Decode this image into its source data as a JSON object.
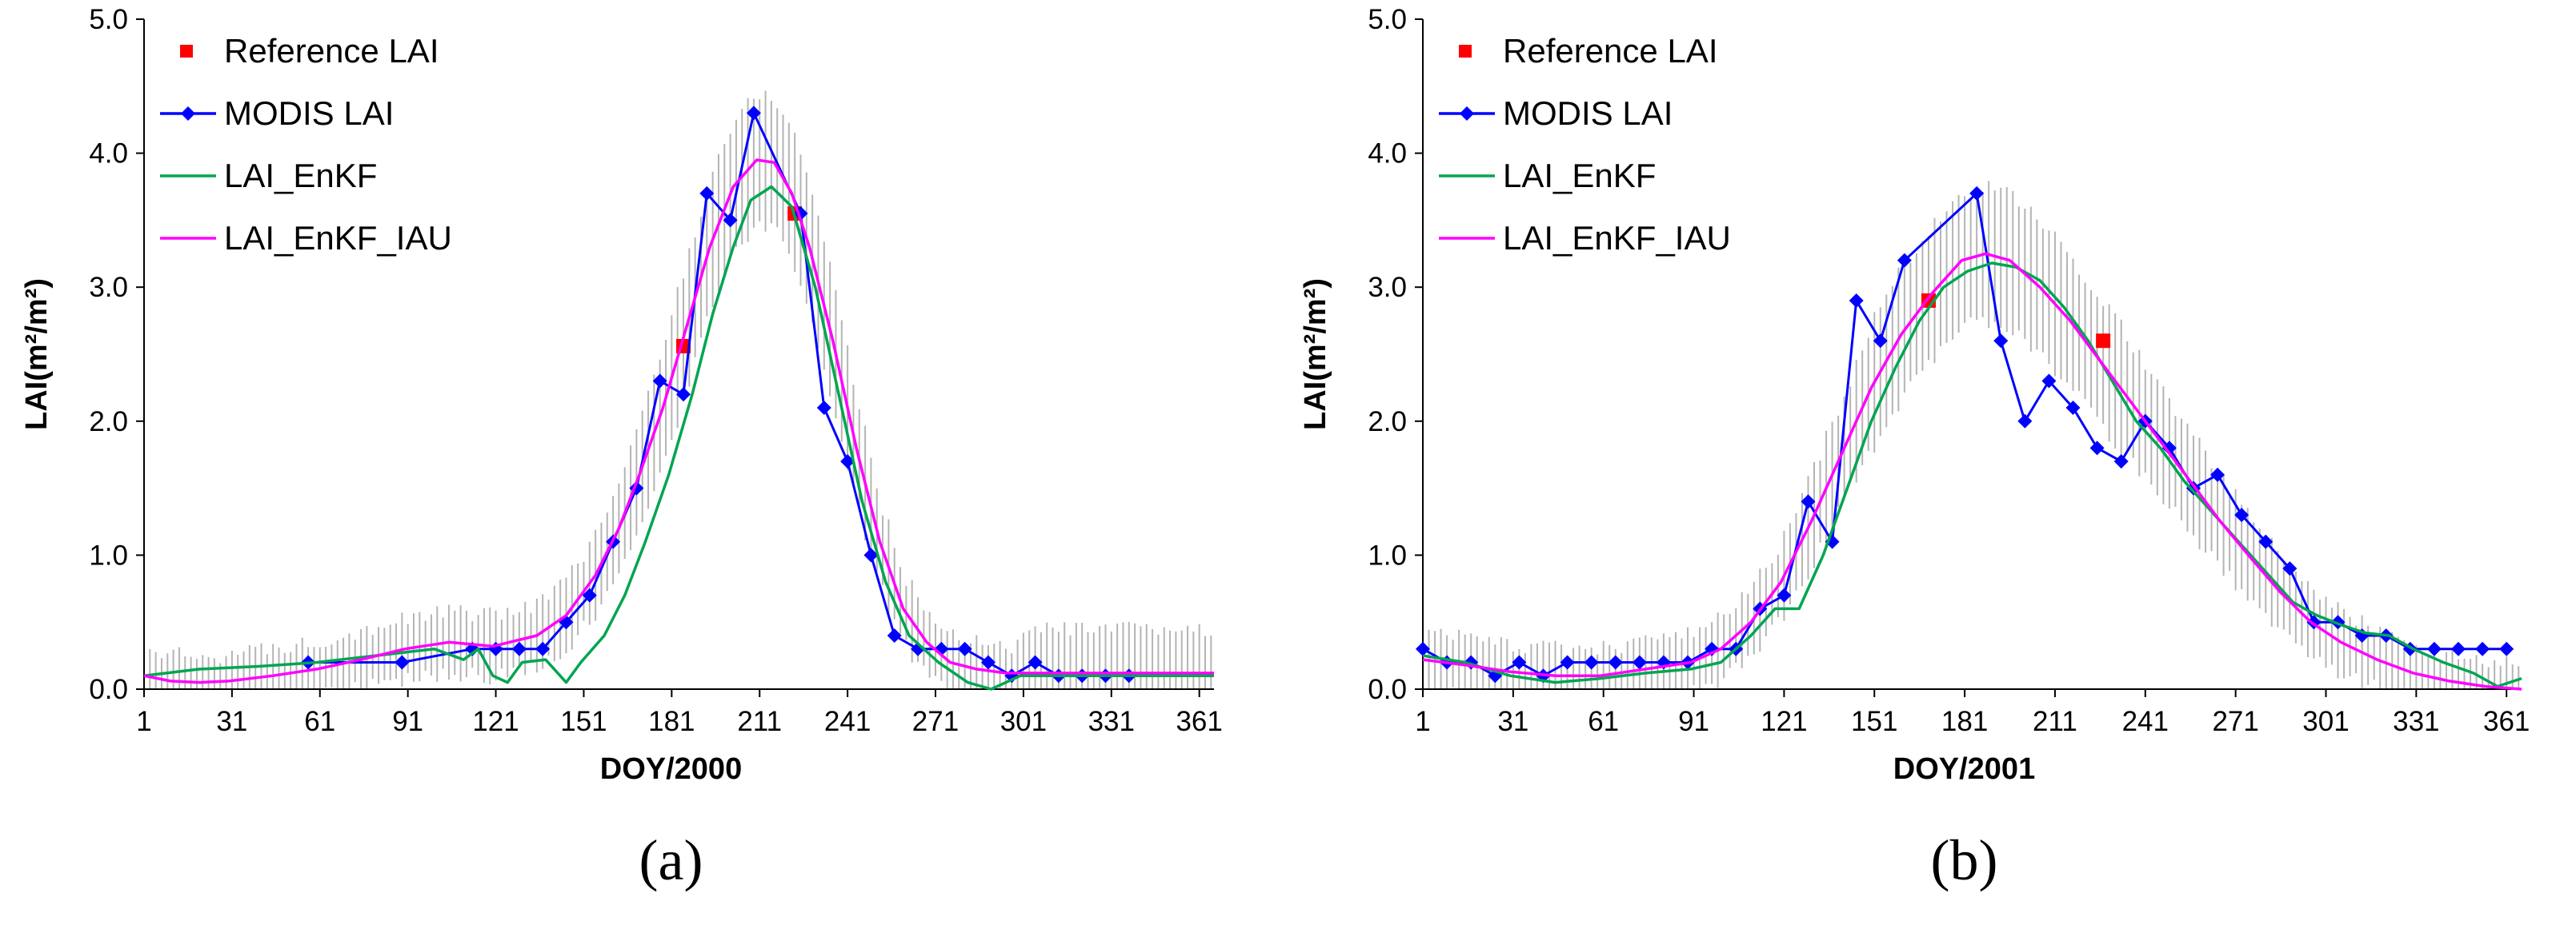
{
  "chart_data": [
    {
      "type": "line",
      "panel_label": "(a)",
      "xlabel": "DOY/2000",
      "ylabel": "LAI(m²/m²)",
      "xlim": [
        1,
        366
      ],
      "ylim": [
        0,
        5
      ],
      "x_ticks": [
        1,
        31,
        61,
        91,
        121,
        151,
        181,
        211,
        241,
        271,
        301,
        331,
        361
      ],
      "y_ticks": [
        "0.0",
        "1.0",
        "2.0",
        "3.0",
        "4.0",
        "5.0"
      ],
      "legend": [
        "Reference LAI",
        "MODIS LAI",
        "LAI_EnKF",
        "LAI_EnKF_IAU"
      ],
      "series": [
        {
          "name": "Reference LAI",
          "style": "marker-square",
          "color": "#ff0000",
          "points": [
            [
              185,
              2.56
            ],
            [
              223,
              3.55
            ]
          ]
        },
        {
          "name": "MODIS LAI",
          "style": "line-diamond",
          "color": "#0000ff",
          "points": [
            [
              57,
              0.2
            ],
            [
              89,
              0.2
            ],
            [
              113,
              0.3
            ],
            [
              121,
              0.3
            ],
            [
              129,
              0.3
            ],
            [
              137,
              0.3
            ],
            [
              145,
              0.5
            ],
            [
              153,
              0.7
            ],
            [
              161,
              1.1
            ],
            [
              169,
              1.5
            ],
            [
              177,
              2.3
            ],
            [
              185,
              2.2
            ],
            [
              193,
              3.7
            ],
            [
              201,
              3.5
            ],
            [
              209,
              4.3
            ],
            [
              225,
              3.55
            ],
            [
              233,
              2.1
            ],
            [
              241,
              1.7
            ],
            [
              249,
              1.0
            ],
            [
              257,
              0.4
            ],
            [
              265,
              0.3
            ],
            [
              273,
              0.3
            ],
            [
              281,
              0.3
            ],
            [
              289,
              0.2
            ],
            [
              297,
              0.1
            ],
            [
              305,
              0.2
            ],
            [
              313,
              0.1
            ],
            [
              321,
              0.1
            ],
            [
              329,
              0.1
            ],
            [
              337,
              0.1
            ]
          ]
        },
        {
          "name": "LAI_EnKF",
          "style": "line",
          "color": "#00a550",
          "points": [
            [
              1,
              0.1
            ],
            [
              20,
              0.15
            ],
            [
              40,
              0.17
            ],
            [
              60,
              0.2
            ],
            [
              80,
              0.25
            ],
            [
              100,
              0.3
            ],
            [
              110,
              0.22
            ],
            [
              115,
              0.3
            ],
            [
              120,
              0.1
            ],
            [
              125,
              0.05
            ],
            [
              130,
              0.2
            ],
            [
              138,
              0.22
            ],
            [
              145,
              0.05
            ],
            [
              150,
              0.2
            ],
            [
              158,
              0.4
            ],
            [
              165,
              0.7
            ],
            [
              172,
              1.1
            ],
            [
              180,
              1.6
            ],
            [
              188,
              2.2
            ],
            [
              195,
              2.8
            ],
            [
              202,
              3.3
            ],
            [
              208,
              3.65
            ],
            [
              215,
              3.75
            ],
            [
              222,
              3.6
            ],
            [
              230,
              3.0
            ],
            [
              238,
              2.2
            ],
            [
              246,
              1.4
            ],
            [
              254,
              0.8
            ],
            [
              262,
              0.4
            ],
            [
              272,
              0.2
            ],
            [
              282,
              0.05
            ],
            [
              290,
              0.0
            ],
            [
              300,
              0.1
            ],
            [
              320,
              0.1
            ],
            [
              340,
              0.1
            ],
            [
              366,
              0.1
            ]
          ]
        },
        {
          "name": "LAI_EnKF_IAU",
          "style": "line",
          "color": "#ff00ff",
          "points": [
            [
              1,
              0.1
            ],
            [
              10,
              0.06
            ],
            [
              20,
              0.05
            ],
            [
              30,
              0.06
            ],
            [
              45,
              0.1
            ],
            [
              60,
              0.15
            ],
            [
              75,
              0.22
            ],
            [
              90,
              0.3
            ],
            [
              105,
              0.35
            ],
            [
              120,
              0.32
            ],
            [
              135,
              0.4
            ],
            [
              145,
              0.55
            ],
            [
              155,
              0.85
            ],
            [
              163,
              1.2
            ],
            [
              170,
              1.6
            ],
            [
              178,
              2.1
            ],
            [
              186,
              2.7
            ],
            [
              194,
              3.3
            ],
            [
              202,
              3.75
            ],
            [
              210,
              3.95
            ],
            [
              216,
              3.93
            ],
            [
              222,
              3.7
            ],
            [
              228,
              3.3
            ],
            [
              236,
              2.6
            ],
            [
              244,
              1.8
            ],
            [
              252,
              1.1
            ],
            [
              260,
              0.6
            ],
            [
              268,
              0.35
            ],
            [
              276,
              0.2
            ],
            [
              285,
              0.15
            ],
            [
              295,
              0.12
            ],
            [
              310,
              0.12
            ],
            [
              330,
              0.12
            ],
            [
              366,
              0.12
            ]
          ]
        }
      ]
    },
    {
      "type": "line",
      "panel_label": "(b)",
      "xlabel": "DOY/2001",
      "ylabel": "LAI(m²/m²)",
      "xlim": [
        1,
        366
      ],
      "ylim": [
        0,
        5
      ],
      "x_ticks": [
        1,
        31,
        61,
        91,
        121,
        151,
        181,
        211,
        241,
        271,
        301,
        331,
        361
      ],
      "y_ticks": [
        "0.0",
        "1.0",
        "2.0",
        "3.0",
        "4.0",
        "5.0"
      ],
      "legend": [
        "Reference LAI",
        "MODIS LAI",
        "LAI_EnKF",
        "LAI_EnKF_IAU"
      ],
      "series": [
        {
          "name": "Reference LAI",
          "style": "marker-square",
          "color": "#ff0000",
          "points": [
            [
              169,
              2.9
            ],
            [
              227,
              2.6
            ]
          ]
        },
        {
          "name": "MODIS LAI",
          "style": "line-diamond",
          "color": "#0000ff",
          "points": [
            [
              1,
              0.3
            ],
            [
              9,
              0.2
            ],
            [
              17,
              0.2
            ],
            [
              25,
              0.1
            ],
            [
              33,
              0.2
            ],
            [
              41,
              0.1
            ],
            [
              49,
              0.2
            ],
            [
              57,
              0.2
            ],
            [
              65,
              0.2
            ],
            [
              73,
              0.2
            ],
            [
              81,
              0.2
            ],
            [
              89,
              0.2
            ],
            [
              97,
              0.3
            ],
            [
              105,
              0.3
            ],
            [
              113,
              0.6
            ],
            [
              121,
              0.7
            ],
            [
              129,
              1.4
            ],
            [
              137,
              1.1
            ],
            [
              145,
              2.9
            ],
            [
              153,
              2.6
            ],
            [
              161,
              3.2
            ],
            [
              185,
              3.7
            ],
            [
              193,
              2.6
            ],
            [
              201,
              2.0
            ],
            [
              209,
              2.3
            ],
            [
              217,
              2.1
            ],
            [
              225,
              1.8
            ],
            [
              233,
              1.7
            ],
            [
              241,
              2.0
            ],
            [
              249,
              1.8
            ],
            [
              257,
              1.5
            ],
            [
              265,
              1.6
            ],
            [
              273,
              1.3
            ],
            [
              281,
              1.1
            ],
            [
              289,
              0.9
            ],
            [
              297,
              0.5
            ],
            [
              305,
              0.5
            ],
            [
              313,
              0.4
            ],
            [
              321,
              0.4
            ],
            [
              329,
              0.3
            ],
            [
              337,
              0.3
            ],
            [
              345,
              0.3
            ],
            [
              353,
              0.3
            ],
            [
              361,
              0.3
            ]
          ]
        },
        {
          "name": "LAI_EnKF",
          "style": "line",
          "color": "#00a550",
          "points": [
            [
              1,
              0.25
            ],
            [
              15,
              0.2
            ],
            [
              30,
              0.1
            ],
            [
              45,
              0.05
            ],
            [
              60,
              0.08
            ],
            [
              75,
              0.12
            ],
            [
              90,
              0.15
            ],
            [
              100,
              0.2
            ],
            [
              110,
              0.4
            ],
            [
              118,
              0.6
            ],
            [
              126,
              0.6
            ],
            [
              134,
              1.0
            ],
            [
              142,
              1.5
            ],
            [
              150,
              2.0
            ],
            [
              158,
              2.4
            ],
            [
              166,
              2.75
            ],
            [
              174,
              3.0
            ],
            [
              182,
              3.12
            ],
            [
              190,
              3.18
            ],
            [
              198,
              3.15
            ],
            [
              206,
              3.05
            ],
            [
              214,
              2.85
            ],
            [
              222,
              2.6
            ],
            [
              230,
              2.3
            ],
            [
              238,
              2.0
            ],
            [
              246,
              1.8
            ],
            [
              254,
              1.55
            ],
            [
              262,
              1.35
            ],
            [
              270,
              1.15
            ],
            [
              280,
              0.9
            ],
            [
              290,
              0.65
            ],
            [
              298,
              0.55
            ],
            [
              306,
              0.48
            ],
            [
              314,
              0.42
            ],
            [
              322,
              0.4
            ],
            [
              330,
              0.3
            ],
            [
              340,
              0.2
            ],
            [
              350,
              0.12
            ],
            [
              358,
              0.02
            ],
            [
              366,
              0.08
            ]
          ]
        },
        {
          "name": "LAI_EnKF_IAU",
          "style": "line",
          "color": "#ff00ff",
          "points": [
            [
              1,
              0.22
            ],
            [
              15,
              0.18
            ],
            [
              30,
              0.13
            ],
            [
              45,
              0.1
            ],
            [
              60,
              0.1
            ],
            [
              75,
              0.15
            ],
            [
              90,
              0.2
            ],
            [
              100,
              0.3
            ],
            [
              110,
              0.5
            ],
            [
              120,
              0.8
            ],
            [
              130,
              1.25
            ],
            [
              140,
              1.75
            ],
            [
              150,
              2.25
            ],
            [
              160,
              2.65
            ],
            [
              170,
              2.95
            ],
            [
              180,
              3.2
            ],
            [
              188,
              3.25
            ],
            [
              196,
              3.2
            ],
            [
              206,
              3.0
            ],
            [
              216,
              2.75
            ],
            [
              226,
              2.45
            ],
            [
              236,
              2.15
            ],
            [
              246,
              1.85
            ],
            [
              256,
              1.55
            ],
            [
              266,
              1.25
            ],
            [
              276,
              0.98
            ],
            [
              286,
              0.72
            ],
            [
              296,
              0.5
            ],
            [
              306,
              0.35
            ],
            [
              318,
              0.22
            ],
            [
              330,
              0.12
            ],
            [
              342,
              0.06
            ],
            [
              354,
              0.02
            ],
            [
              366,
              0.0
            ]
          ]
        }
      ]
    }
  ]
}
